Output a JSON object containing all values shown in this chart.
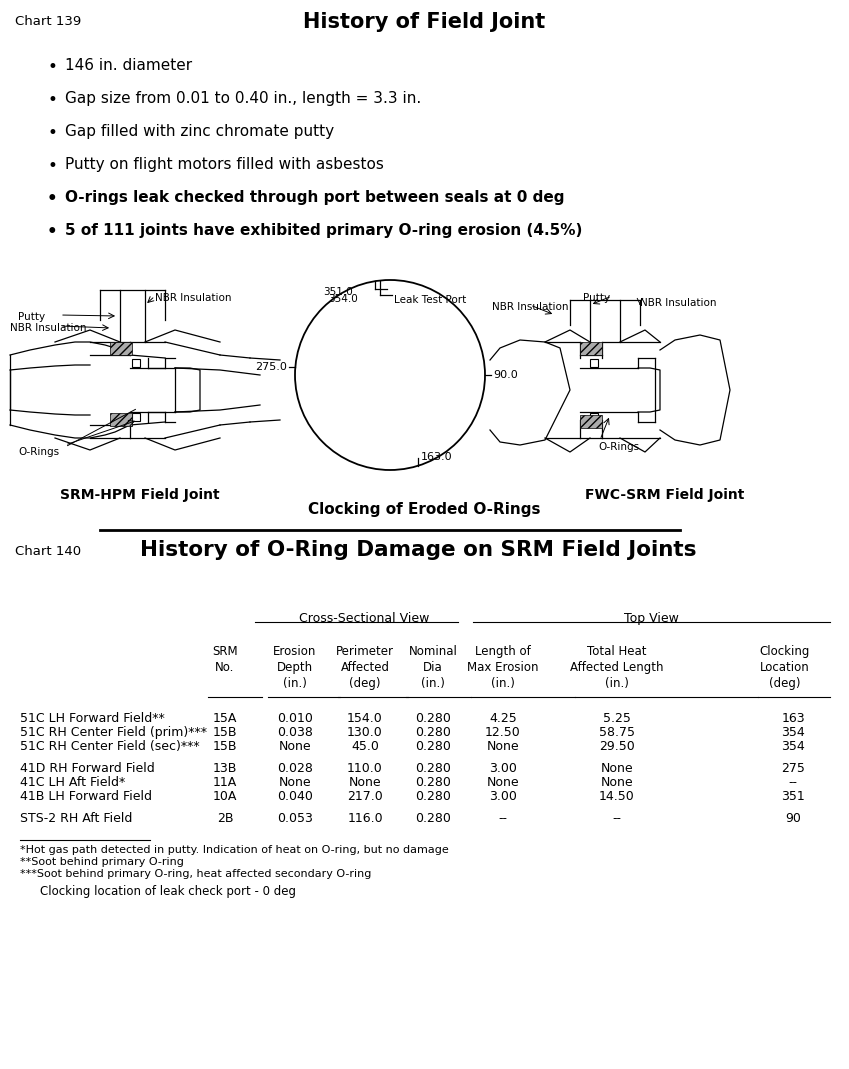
{
  "chart139_title": "History of Field Joint",
  "chart139_label": "Chart 139",
  "chart139_bullets": [
    "146 in. diameter",
    "Gap size from 0.01 to 0.40 in., length = 3.3 in.",
    "Gap filled with zinc chromate putty",
    "Putty on flight motors filled with asbestos",
    "O-rings leak checked through port between seals at 0 deg",
    "5 of 111 joints have exhibited primary O-ring erosion (4.5%)"
  ],
  "chart139_bullet_bold": [
    false,
    false,
    false,
    false,
    true,
    true
  ],
  "diagram_caption": "Clocking of Eroded O-Rings",
  "srm_hpm_label": "SRM-HPM Field Joint",
  "fwc_srm_label": "FWC-SRM Field Joint",
  "circle_labels": [
    "163.0",
    "90.0",
    "275.0",
    "351.0",
    "354.0"
  ],
  "leak_test_label": "Leak Test Port",
  "chart140_title": "History of O-Ring Damage on SRM Field Joints",
  "chart140_label": "Chart 140",
  "csv_header": "Cross-Sectional View",
  "tv_header": "Top View",
  "col_headers": [
    [
      "SRM",
      "No."
    ],
    [
      "Erosion",
      "Depth",
      "(in.)"
    ],
    [
      "Perimeter",
      "Affected",
      "(deg)"
    ],
    [
      "Nominal",
      "Dia",
      "(in.)"
    ],
    [
      "Length of",
      "Max Erosion",
      "(in.)"
    ],
    [
      "Total Heat",
      "Affected Length",
      "(in.)"
    ],
    [
      "Clocking",
      "Location",
      "(deg)"
    ]
  ],
  "table_rows": [
    [
      "51C LH Forward Field**",
      "15A",
      "0.010",
      "154.0",
      "0.280",
      "4.25",
      "5.25",
      "163"
    ],
    [
      "51C RH Center Field (prim)***",
      "15B",
      "0.038",
      "130.0",
      "0.280",
      "12.50",
      "58.75",
      "354"
    ],
    [
      "51C RH Center Field (sec)***",
      "15B",
      "None",
      "45.0",
      "0.280",
      "None",
      "29.50",
      "354"
    ],
    [
      "41D RH Forward Field",
      "13B",
      "0.028",
      "110.0",
      "0.280",
      "3.00",
      "None",
      "275"
    ],
    [
      "41C LH Aft Field*",
      "11A",
      "None",
      "None",
      "0.280",
      "None",
      "None",
      "--"
    ],
    [
      "41B LH Forward Field",
      "10A",
      "0.040",
      "217.0",
      "0.280",
      "3.00",
      "14.50",
      "351"
    ],
    [
      "STS-2 RH Aft Field",
      "2B",
      "0.053",
      "116.0",
      "0.280",
      "--",
      "--",
      "90"
    ]
  ],
  "footnote1": "*Hot gas path detected in putty. Indication of heat on O-ring, but no damage",
  "footnote2": "**Soot behind primary O-ring",
  "footnote3": "***Soot behind primary O-ring, heat affected secondary O-ring",
  "footnote4": "Clocking location of leak check port - 0 deg",
  "bg_color": "#ffffff"
}
